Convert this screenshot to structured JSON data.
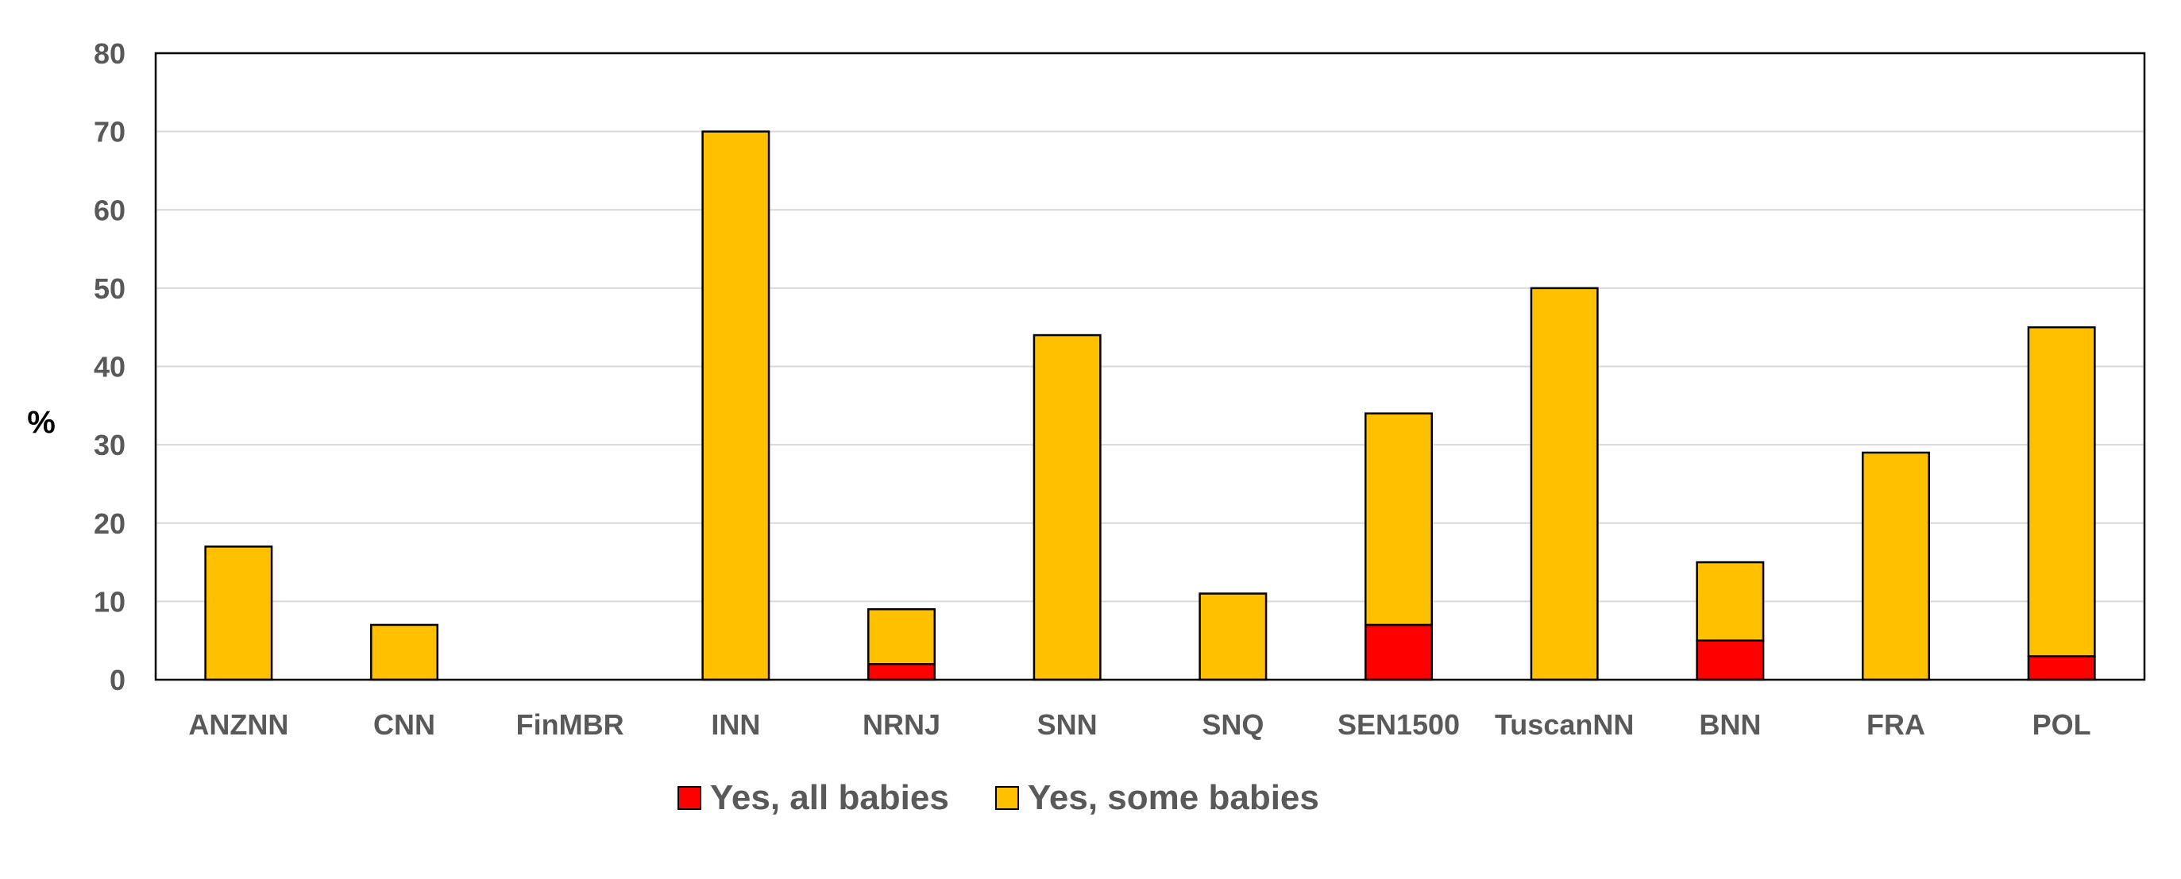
{
  "chart_data": {
    "type": "bar",
    "stacked": true,
    "ylabel": "%",
    "xlabel": "",
    "ylim": [
      0,
      80
    ],
    "yticks": [
      0,
      10,
      20,
      30,
      40,
      50,
      60,
      70,
      80
    ],
    "grid": true,
    "legend_position": "bottom",
    "categories": [
      "ANZNN",
      "CNN",
      "FinMBR",
      "INN",
      "NRNJ",
      "SNN",
      "SNQ",
      "SEN1500",
      "TuscanNN",
      "BNN",
      "FRA",
      "POL"
    ],
    "series": [
      {
        "name": "Yes, all babies",
        "color": "#FF0000",
        "values": [
          0,
          0,
          0,
          0,
          2,
          0,
          0,
          7,
          0,
          5,
          0,
          3
        ]
      },
      {
        "name": "Yes, some babies",
        "color": "#FFC000",
        "values": [
          17,
          7,
          0,
          70,
          7,
          44,
          11,
          27,
          50,
          10,
          29,
          42
        ]
      }
    ]
  }
}
